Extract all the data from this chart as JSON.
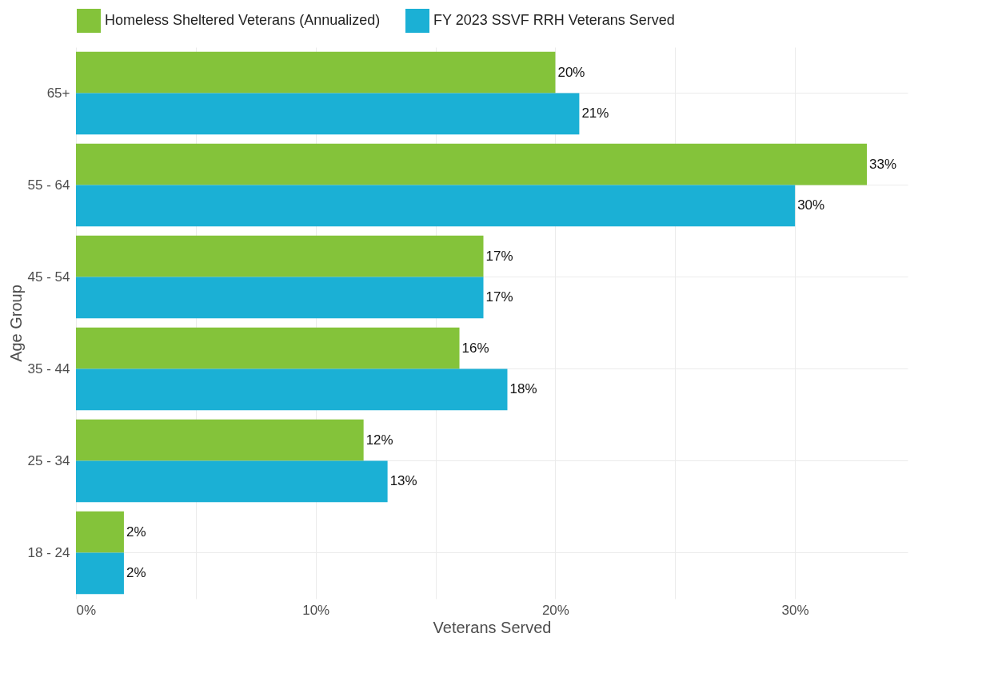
{
  "chart_data": {
    "type": "bar",
    "orientation": "horizontal",
    "xlabel": "Veterans Served",
    "ylabel": "Age Group",
    "categories": [
      "65+",
      "55 - 64",
      "45 - 54",
      "35 - 44",
      "25 - 34",
      "18 - 24"
    ],
    "series": [
      {
        "name": "Homeless Sheltered Veterans (Annualized)",
        "color": "#84c33a",
        "values": [
          20,
          33,
          17,
          16,
          12,
          2
        ],
        "value_labels": [
          "20%",
          "33%",
          "17%",
          "16%",
          "12%",
          "2%"
        ]
      },
      {
        "name": "FY 2023 SSVF RRH Veterans Served",
        "color": "#1bb0d5",
        "values": [
          21,
          30,
          17,
          18,
          13,
          2
        ],
        "value_labels": [
          "21%",
          "30%",
          "17%",
          "18%",
          "13%",
          "2%"
        ]
      }
    ],
    "xlim": [
      0,
      34.7
    ],
    "xticks": [
      {
        "value": 0,
        "label": "0%"
      },
      {
        "value": 5,
        "label": null
      },
      {
        "value": 10,
        "label": "10%"
      },
      {
        "value": 15,
        "label": null
      },
      {
        "value": 20,
        "label": "20%"
      },
      {
        "value": 25,
        "label": null
      },
      {
        "value": 30,
        "label": "30%"
      }
    ],
    "grid": true,
    "legend": "top"
  }
}
